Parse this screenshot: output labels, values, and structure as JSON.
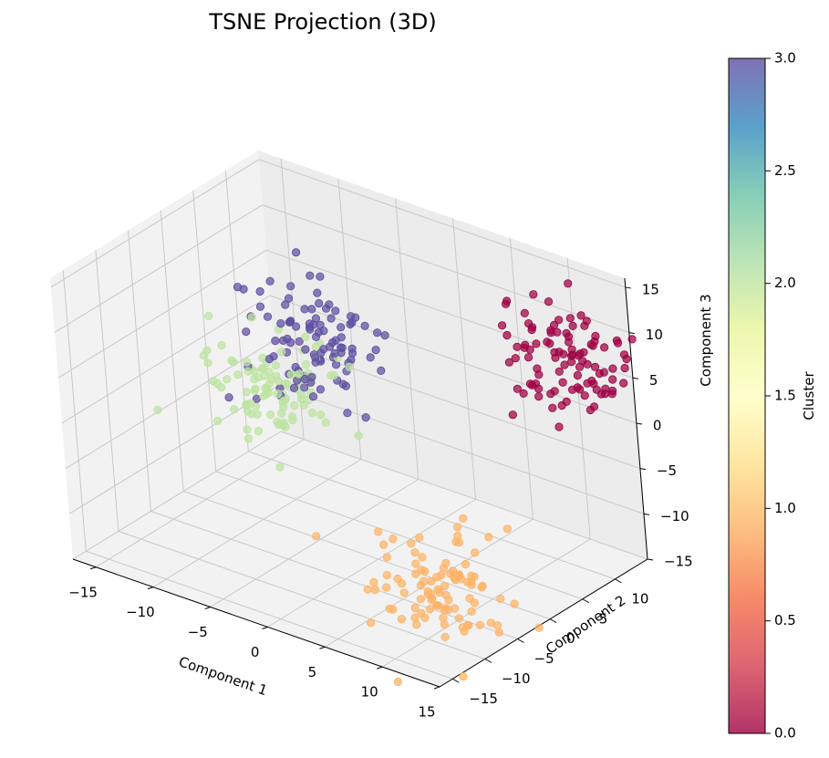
{
  "chart_data": {
    "type": "scatter3d",
    "title": "TSNE Projection (3D)",
    "xlabel": "Component 1",
    "ylabel": "Component 2",
    "zlabel": "Component 3",
    "xlim": [
      -17,
      15
    ],
    "ylim": [
      -17,
      15
    ],
    "zlim": [
      -15,
      16
    ],
    "x_ticks": [
      -15,
      -10,
      -5,
      0,
      5,
      10,
      15
    ],
    "y_ticks": [
      -15,
      -10,
      -5,
      0,
      5,
      10
    ],
    "z_ticks": [
      -15,
      -10,
      -5,
      0,
      5,
      10,
      15
    ],
    "grid": true,
    "colormap": "Spectral",
    "colorbar": {
      "label": "Cluster",
      "min": 0.0,
      "max": 3.0,
      "ticks": [
        "0.0",
        "0.5",
        "1.0",
        "1.5",
        "2.0",
        "2.5",
        "3.0"
      ],
      "colors": [
        "#9e0142",
        "#d53e4f",
        "#f46d43",
        "#fdae61",
        "#fee08b",
        "#ffffbf",
        "#e6f598",
        "#abdda4",
        "#66c2a5",
        "#3288bd",
        "#5e4fa2"
      ]
    },
    "clusters": [
      {
        "value": 0,
        "color": "#9e0142",
        "center": [
          12,
          10,
          8
        ],
        "spread": [
          2.6,
          2.6,
          2.8
        ],
        "count": 100
      },
      {
        "value": 1,
        "color": "#fdb366",
        "center": [
          12,
          -10,
          -9
        ],
        "spread": [
          2.6,
          2.6,
          2.8
        ],
        "count": 100
      },
      {
        "value": 2,
        "color": "#bde3a1",
        "center": [
          -10,
          2,
          -1
        ],
        "spread": [
          2.6,
          2.6,
          2.8
        ],
        "count": 100
      },
      {
        "value": 3,
        "color": "#5e4fa2",
        "center": [
          -8,
          6,
          3
        ],
        "spread": [
          2.6,
          2.6,
          2.8
        ],
        "count": 100
      }
    ]
  }
}
